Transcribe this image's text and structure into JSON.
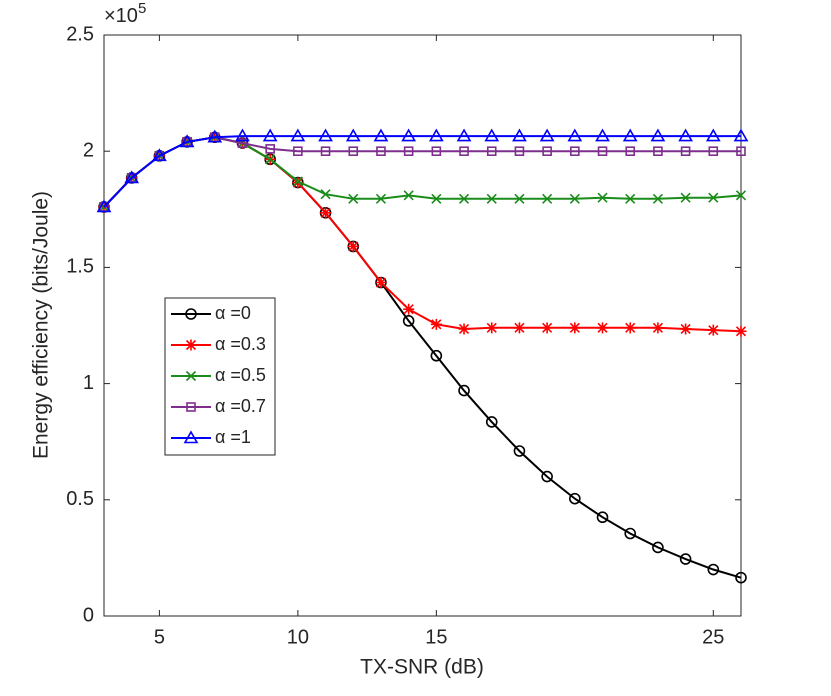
{
  "chart_data": {
    "type": "line",
    "xlabel": "TX-SNR (dB)",
    "ylabel": "Energy efficiency (bits/Joule)",
    "y_exponent": {
      "base": "×10",
      "exponent": "5"
    },
    "x": [
      3,
      4,
      5,
      6,
      7,
      8,
      9,
      10,
      11,
      12,
      13,
      14,
      15,
      16,
      17,
      18,
      19,
      20,
      21,
      22,
      23,
      24,
      25,
      26
    ],
    "xlim": [
      3,
      26
    ],
    "xticks": [
      5,
      10,
      15,
      25
    ],
    "ylim": [
      0,
      2.5
    ],
    "yticks": [
      0,
      0.5,
      1,
      1.5,
      2,
      2.5
    ],
    "grid": false,
    "legend": "left",
    "series": [
      {
        "name": "α =0",
        "color": "#000000",
        "marker": "circle",
        "values": [
          1.76,
          1.885,
          1.98,
          2.04,
          2.06,
          2.035,
          1.965,
          1.865,
          1.735,
          1.59,
          1.435,
          1.27,
          1.12,
          0.97,
          0.835,
          0.71,
          0.6,
          0.505,
          0.425,
          0.355,
          0.295,
          0.245,
          0.2,
          0.165
        ]
      },
      {
        "name": "α =0.3",
        "color": "#ff0000",
        "marker": "star",
        "values": [
          1.76,
          1.885,
          1.98,
          2.04,
          2.06,
          2.035,
          1.965,
          1.865,
          1.735,
          1.59,
          1.435,
          1.32,
          1.255,
          1.235,
          1.24,
          1.24,
          1.24,
          1.24,
          1.24,
          1.24,
          1.24,
          1.235,
          1.23,
          1.225
        ]
      },
      {
        "name": "α =0.5",
        "color": "#1a8c1a",
        "marker": "x",
        "values": [
          1.76,
          1.885,
          1.98,
          2.04,
          2.06,
          2.035,
          1.965,
          1.87,
          1.815,
          1.795,
          1.795,
          1.81,
          1.795,
          1.795,
          1.795,
          1.795,
          1.795,
          1.795,
          1.8,
          1.795,
          1.795,
          1.8,
          1.8,
          1.81
        ]
      },
      {
        "name": "α =0.7",
        "color": "#7e2f8e",
        "marker": "square",
        "values": [
          1.76,
          1.885,
          1.98,
          2.04,
          2.06,
          2.035,
          2.01,
          2.0,
          2.0,
          2.0,
          2.0,
          2.0,
          2.0,
          2.0,
          2.0,
          2.0,
          2.0,
          2.0,
          2.0,
          2.0,
          2.0,
          2.0,
          2.0,
          2.0
        ]
      },
      {
        "name": "α =1",
        "color": "#0000ff",
        "marker": "triangle",
        "values": [
          1.76,
          1.885,
          1.98,
          2.04,
          2.06,
          2.065,
          2.065,
          2.065,
          2.065,
          2.065,
          2.065,
          2.065,
          2.065,
          2.065,
          2.065,
          2.065,
          2.065,
          2.065,
          2.065,
          2.065,
          2.065,
          2.065,
          2.065,
          2.065
        ]
      }
    ]
  }
}
